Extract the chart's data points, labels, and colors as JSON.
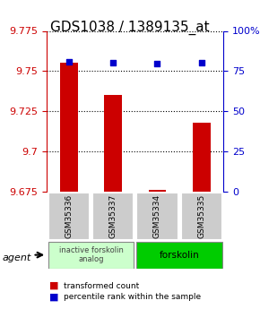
{
  "title": "GDS1038 / 1389135_at",
  "samples": [
    "GSM35336",
    "GSM35337",
    "GSM35334",
    "GSM35335"
  ],
  "red_values": [
    9.755,
    9.735,
    9.676,
    9.718
  ],
  "blue_values": [
    80.5,
    80.0,
    79.5,
    80.0
  ],
  "ylim_left": [
    9.675,
    9.775
  ],
  "ylim_right": [
    0,
    100
  ],
  "yticks_left": [
    9.675,
    9.7,
    9.725,
    9.75,
    9.775
  ],
  "yticks_right": [
    0,
    25,
    50,
    75,
    100
  ],
  "ytick_labels_right": [
    "0",
    "25",
    "50",
    "75",
    "100%"
  ],
  "group1_label": "inactive forskolin\nanalog",
  "group2_label": "forskolin",
  "agent_label": "agent",
  "legend_red": "transformed count",
  "legend_blue": "percentile rank within the sample",
  "bar_color": "#cc0000",
  "dot_color": "#0000cc",
  "group1_bg": "#ccffcc",
  "group2_bg": "#00cc00",
  "sample_bg": "#cccccc",
  "title_fontsize": 11,
  "tick_fontsize": 8,
  "label_fontsize": 8
}
